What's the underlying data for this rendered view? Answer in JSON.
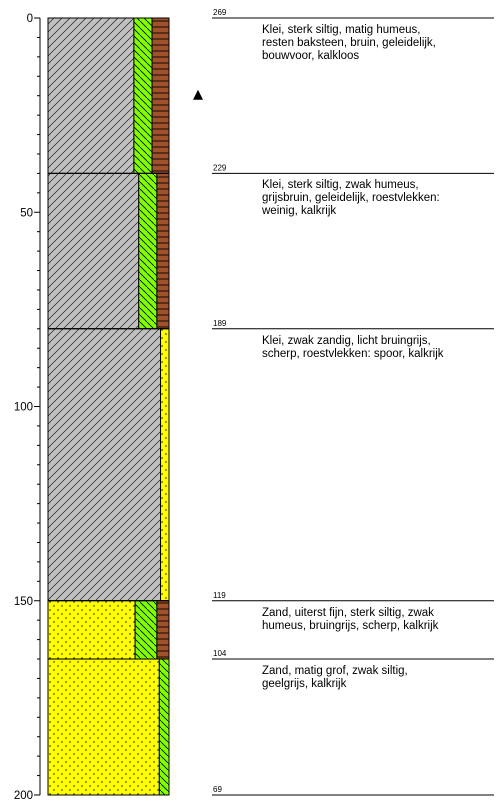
{
  "depth_axis": {
    "unit": "cm",
    "min": 0,
    "max": 200,
    "labeled_ticks": [
      "0",
      "50",
      "100",
      "150",
      "200"
    ],
    "major_step": 50,
    "minor_step": 5
  },
  "groundwater_depth": 20,
  "layers": [
    {
      "top": 0,
      "bottom": 40,
      "top_level": "269",
      "description": "Klei, sterk siltig, matig humeus,\nresten baksteen, bruin, geleidelijk,\nbouwvoor, kalkloos",
      "columns": [
        {
          "pattern": "clay",
          "color": "#c0c0c0",
          "right": 0.71
        },
        {
          "pattern": "silt",
          "color": "#80ff00",
          "right": 0.86
        },
        {
          "pattern": "humus",
          "color": "#a0522d",
          "right": 1.0
        }
      ]
    },
    {
      "top": 40,
      "bottom": 80,
      "top_level": "229",
      "description": "Klei, sterk siltig, zwak humeus,\ngrijsbruin, geleidelijk, roestvlekken:\nweinig, kalkrijk",
      "columns": [
        {
          "pattern": "clay",
          "color": "#c0c0c0",
          "right": 0.75
        },
        {
          "pattern": "silt",
          "color": "#80ff00",
          "right": 0.9
        },
        {
          "pattern": "humus",
          "color": "#a0522d",
          "right": 1.0
        }
      ]
    },
    {
      "top": 80,
      "bottom": 150,
      "top_level": "189",
      "description": "Klei, zwak zandig, licht bruingrijs,\nscherp, roestvlekken: spoor, kalkrijk",
      "columns": [
        {
          "pattern": "clay",
          "color": "#c0c0c0",
          "right": 0.93
        },
        {
          "pattern": "sand",
          "color": "#ffff00",
          "right": 1.0
        }
      ]
    },
    {
      "top": 150,
      "bottom": 165,
      "top_level": "119",
      "description": "Zand, uiterst fijn, sterk siltig, zwak\nhumeus, bruingrijs, scherp, kalkrijk",
      "columns": [
        {
          "pattern": "sand",
          "color": "#ffff00",
          "right": 0.72
        },
        {
          "pattern": "silt",
          "color": "#80ff00",
          "right": 0.9
        },
        {
          "pattern": "humus",
          "color": "#a0522d",
          "right": 1.0
        }
      ]
    },
    {
      "top": 165,
      "bottom": 200,
      "top_level": "104",
      "description": "Zand, matig grof, zwak siltig,\ngeelgrijs, kalkrijk",
      "columns": [
        {
          "pattern": "sand",
          "color": "#ffff00",
          "right": 0.92
        },
        {
          "pattern": "silt",
          "color": "#80ff00",
          "right": 1.0
        }
      ]
    }
  ],
  "bottom_level": "69"
}
